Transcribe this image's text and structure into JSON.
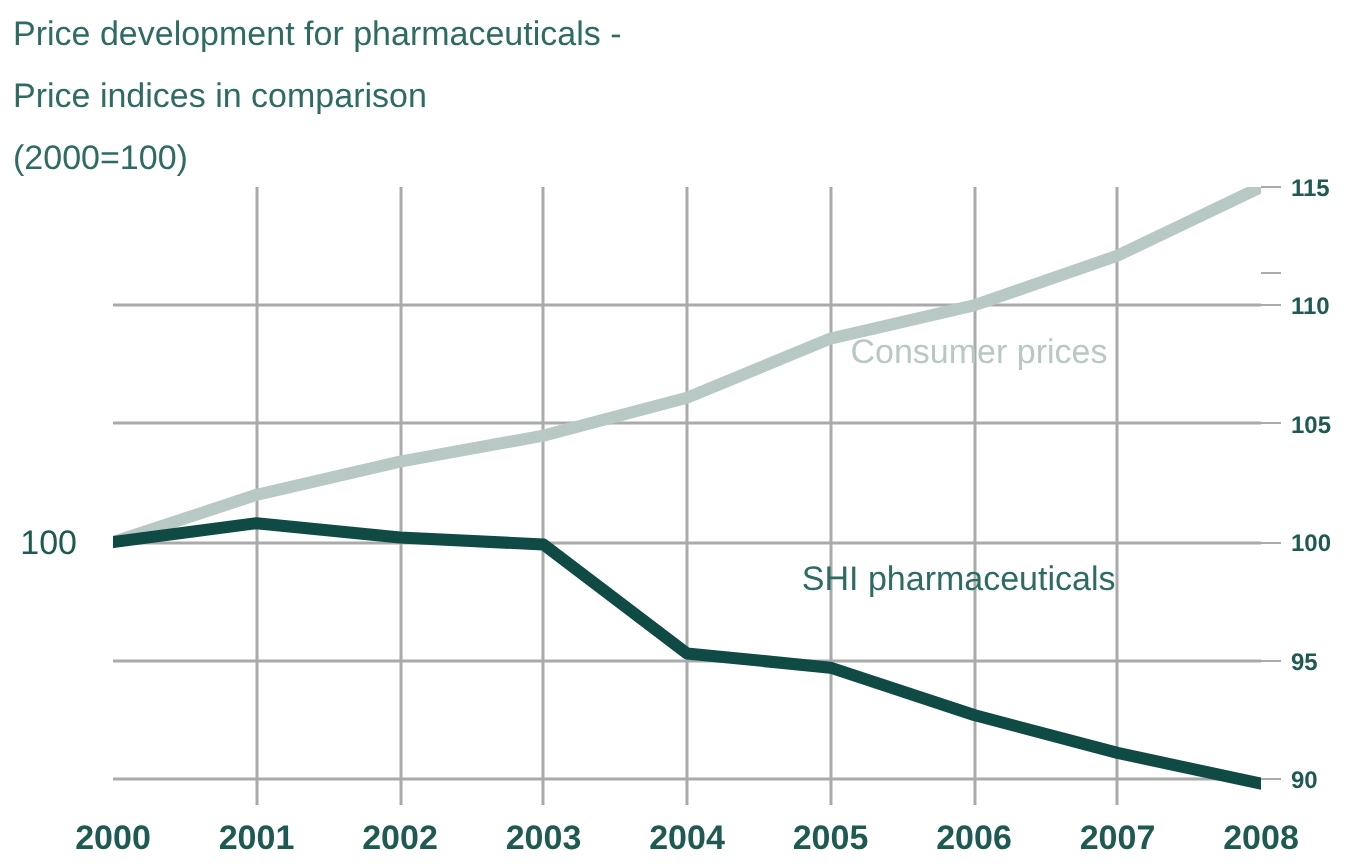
{
  "chart_data": {
    "type": "line",
    "title": "Price development for pharmaceuticals -",
    "subtitle": "Price indices in comparison",
    "annotations": [
      "(2000=100)",
      "100"
    ],
    "x": [
      2000,
      2001,
      2002,
      2003,
      2004,
      2005,
      2006,
      2007,
      2008
    ],
    "series": [
      {
        "name": "Consumer prices",
        "color": "#b8c9c5",
        "values": [
          100,
          102.0,
          103.4,
          104.5,
          106.1,
          108.6,
          110.0,
          112.1,
          115.0
        ]
      },
      {
        "name": "SHI pharmaceuticals",
        "color": "#0f4a44",
        "values": [
          100,
          100.8,
          100.2,
          99.9,
          95.3,
          94.7,
          92.7,
          91.1,
          89.8
        ]
      }
    ],
    "xlim": [
      2000,
      2008
    ],
    "xticks": [
      2000,
      2001,
      2002,
      2003,
      2004,
      2005,
      2006,
      2007,
      2008
    ],
    "ylim": [
      88.9,
      115
    ],
    "yticks": [
      90,
      95,
      100,
      105,
      110,
      {
        "value": 111.4,
        "label": null
      },
      115
    ],
    "grid": true,
    "marker": "none",
    "line_style": "solid"
  }
}
